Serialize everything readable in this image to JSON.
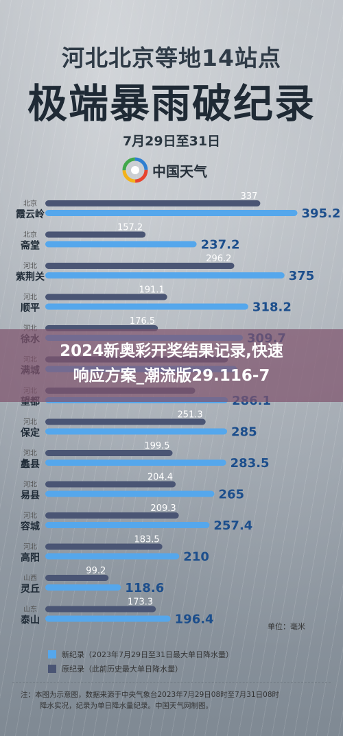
{
  "header": {
    "title_line1": "河北北京等地14站点",
    "title_line2": "极端暴雨破纪录",
    "date_range": "7月29日至31日",
    "brand": "中国天气"
  },
  "banner": {
    "line1": "2024新奥彩开奖结果记录,快速",
    "line2": "响应方案_潮流版29.116-7"
  },
  "colors": {
    "new_record": "#55a7ec",
    "old_record": "#4a5574",
    "value_text": "#1c4e8c",
    "old_text": "#ffffff"
  },
  "chart_data": {
    "type": "bar",
    "orientation": "horizontal",
    "categories": [
      {
        "province": "北京",
        "station": "霞云岭"
      },
      {
        "province": "北京",
        "station": "斋堂"
      },
      {
        "province": "河北",
        "station": "紫荆关"
      },
      {
        "province": "河北",
        "station": "顺平"
      },
      {
        "province": "河北",
        "station": "徐水"
      },
      {
        "province": "河北",
        "station": "满城"
      },
      {
        "province": "河北",
        "station": "望都"
      },
      {
        "province": "河北",
        "station": "保定"
      },
      {
        "province": "河北",
        "station": "蠡县"
      },
      {
        "province": "河北",
        "station": "易县"
      },
      {
        "province": "河北",
        "station": "容城"
      },
      {
        "province": "河北",
        "station": "高阳"
      },
      {
        "province": "山西",
        "station": "灵丘"
      },
      {
        "province": "山东",
        "station": "泰山"
      }
    ],
    "series": [
      {
        "name": "新纪录（2023年7月29日至31日最大单日降水量）",
        "values": [
          395.2,
          237.2,
          375,
          318.2,
          309.7,
          300.5,
          286.1,
          285,
          283.5,
          265,
          257.4,
          210,
          118.6,
          196.4
        ],
        "labels": [
          "395.2",
          "237.2",
          "375",
          "318.2",
          "309.7",
          "",
          "286.1",
          "285",
          "283.5",
          "265",
          "257.4",
          "210",
          "118.6",
          "196.4"
        ]
      },
      {
        "name": "原纪录（此前历史最大单日降水量）",
        "values": [
          337,
          157.2,
          296.2,
          191.1,
          176.5,
          286.3,
          235,
          251.3,
          199.5,
          204.4,
          209.3,
          183.5,
          99.2,
          173.3
        ],
        "labels": [
          "337",
          "157.2",
          "296.2",
          "191.1",
          "176.5",
          "286.3",
          "",
          "251.3",
          "199.5",
          "204.4",
          "209.3",
          "183.5",
          "99.2",
          "173.3"
        ]
      }
    ],
    "unit": "单位：毫米"
  },
  "footer": {
    "note_line1": "注：本图为示意图，数据来源于中央气象台2023年7月29日08时至7月31日08时",
    "note_line2": "降水实况，纪录为单日降水量纪录。中国天气网制图。"
  }
}
